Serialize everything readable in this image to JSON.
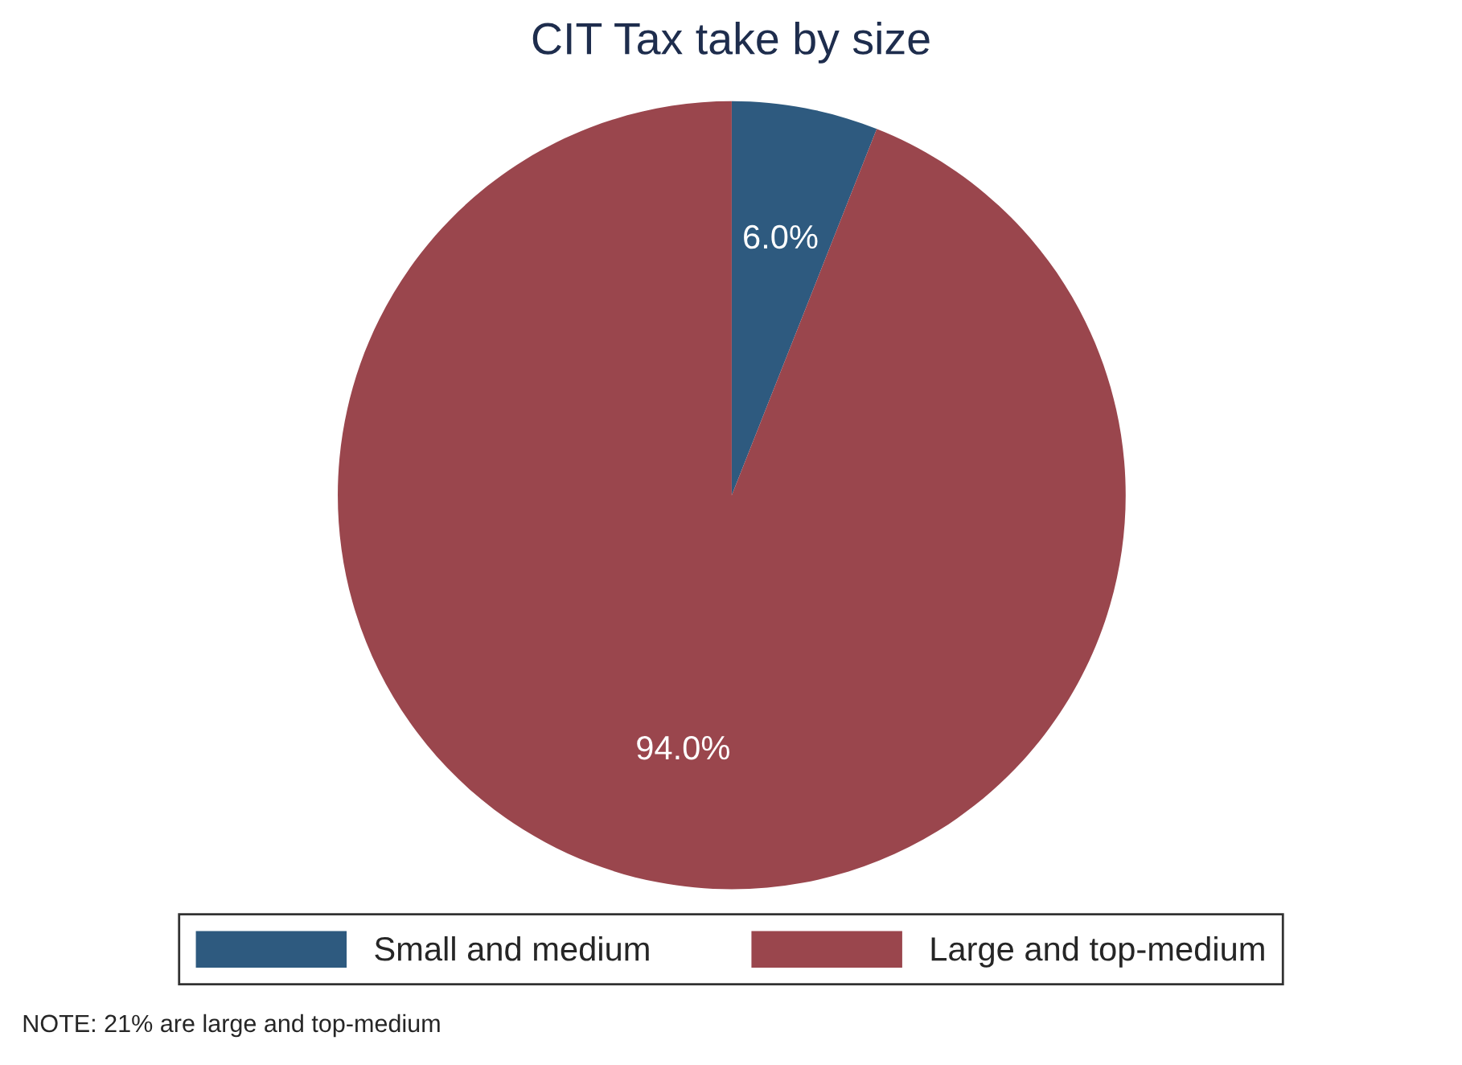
{
  "chart_data": {
    "type": "pie",
    "title": "CIT Tax take by size",
    "categories": [
      "Small and medium",
      "Large and top-medium"
    ],
    "values": [
      6.0,
      94.0
    ],
    "colors": [
      "#2e5a7f",
      "#9a464d"
    ],
    "value_labels": [
      "6.0%",
      "94.0%"
    ],
    "legend": "bottom",
    "annotations": [
      "NOTE: 21% are large and top-medium"
    ]
  }
}
